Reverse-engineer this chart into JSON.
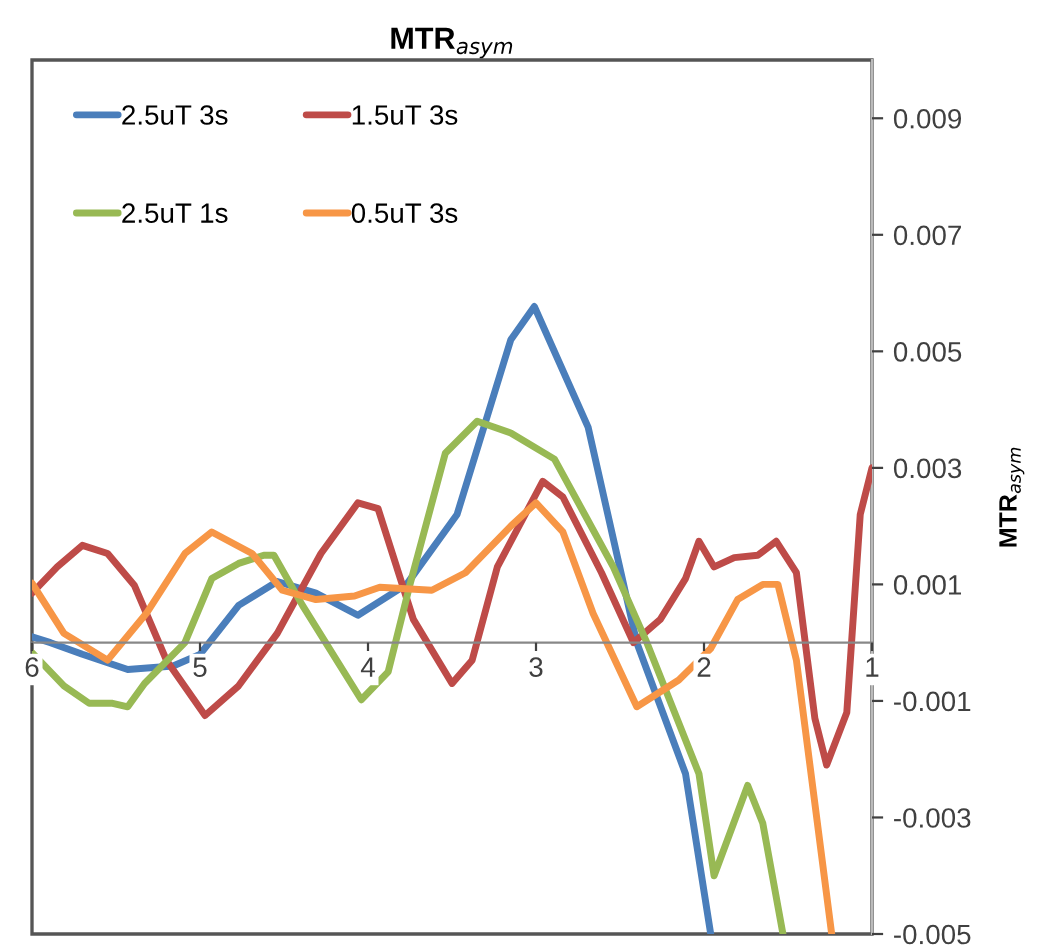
{
  "chart_data": {
    "type": "line",
    "title": "MTR$_{asym}$",
    "ylabel": "MTR$_{asym}$",
    "xlim": [
      6,
      1
    ],
    "xticks": [
      6,
      5,
      4,
      3,
      2,
      1
    ],
    "ylim": [
      -0.005,
      0.01
    ],
    "yticks": [
      -0.005,
      -0.003,
      -0.001,
      0.001,
      0.003,
      0.005,
      0.007,
      0.009
    ],
    "grid": false,
    "legend": "top left",
    "marker": "none",
    "line_style": "solid",
    "series": [
      {
        "name": "2.5uT 3s",
        "color": "#4a7ebb",
        "x": [
          6,
          5.89,
          5.7,
          5.43,
          5.16,
          5.0,
          4.77,
          4.54,
          4.31,
          4.06,
          3.77,
          3.47,
          3.15,
          3.01,
          2.69,
          2.4,
          2.11,
          1.96
        ],
        "values": [
          0.0001,
          0.0,
          -0.0002,
          -0.00046,
          -0.0004,
          -0.0002,
          0.00064,
          0.00105,
          0.00085,
          0.00047,
          0.001,
          0.0022,
          0.0052,
          0.00577,
          0.0037,
          0.0,
          -0.00225,
          -0.005
        ]
      },
      {
        "name": "1.5uT 3s",
        "color": "#be4b48",
        "x": [
          6,
          5.85,
          5.7,
          5.55,
          5.39,
          5.2,
          4.97,
          4.77,
          4.54,
          4.28,
          4.06,
          3.94,
          3.73,
          3.5,
          3.38,
          3.23,
          2.96,
          2.84,
          2.61,
          2.42,
          2.26,
          2.11,
          2.03,
          1.94,
          1.82,
          1.68,
          1.57,
          1.45,
          1.34,
          1.27,
          1.15,
          1.07,
          1.0
        ],
        "values": [
          0.00085,
          0.0013,
          0.00167,
          0.00153,
          0.00098,
          -0.0003,
          -0.00125,
          -0.00074,
          0.00016,
          0.00153,
          0.0024,
          0.0023,
          0.0004,
          -0.0007,
          -0.0003,
          0.0013,
          0.00277,
          0.0025,
          0.0012,
          0.0,
          0.0004,
          0.0011,
          0.00174,
          0.0013,
          0.00146,
          0.0015,
          0.00174,
          0.0012,
          -0.0013,
          -0.0021,
          -0.0012,
          0.0022,
          0.003
        ]
      },
      {
        "name": "2.5uT 1s",
        "color": "#98b954",
        "x": [
          6,
          5.81,
          5.66,
          5.52,
          5.43,
          5.33,
          5.09,
          4.93,
          4.77,
          4.62,
          4.56,
          4.39,
          4.04,
          3.88,
          3.75,
          3.54,
          3.35,
          3.15,
          2.89,
          2.71,
          2.54,
          2.34,
          2.03,
          1.94,
          1.74,
          1.65,
          1.53
        ],
        "values": [
          -0.00017,
          -0.00074,
          -0.00104,
          -0.00104,
          -0.0011,
          -0.0007,
          0.0,
          0.0011,
          0.00136,
          0.0015,
          0.0015,
          0.00064,
          -0.00098,
          -0.0005,
          0.001,
          0.00325,
          0.0038,
          0.0036,
          0.00315,
          0.0022,
          0.0013,
          0.0,
          -0.00225,
          -0.004,
          -0.00245,
          -0.0031,
          -0.005
        ]
      },
      {
        "name": "0.5uT 3s",
        "color": "#f79646",
        "x": [
          6,
          5.81,
          5.55,
          5.32,
          5.09,
          4.93,
          4.69,
          4.51,
          4.31,
          4.08,
          3.93,
          3.62,
          3.42,
          3.15,
          3.0,
          2.84,
          2.66,
          2.4,
          2.15,
          1.96,
          1.8,
          1.65,
          1.56,
          1.45,
          1.24
        ],
        "values": [
          0.00102,
          0.00016,
          -0.0003,
          0.0005,
          0.00153,
          0.0019,
          0.00153,
          0.0009,
          0.00074,
          0.0008,
          0.00095,
          0.0009,
          0.0012,
          0.002,
          0.0024,
          0.0019,
          0.0005,
          -0.0011,
          -0.00064,
          -0.0001,
          0.00074,
          0.001,
          0.001,
          -0.0003,
          -0.005
        ]
      }
    ]
  }
}
